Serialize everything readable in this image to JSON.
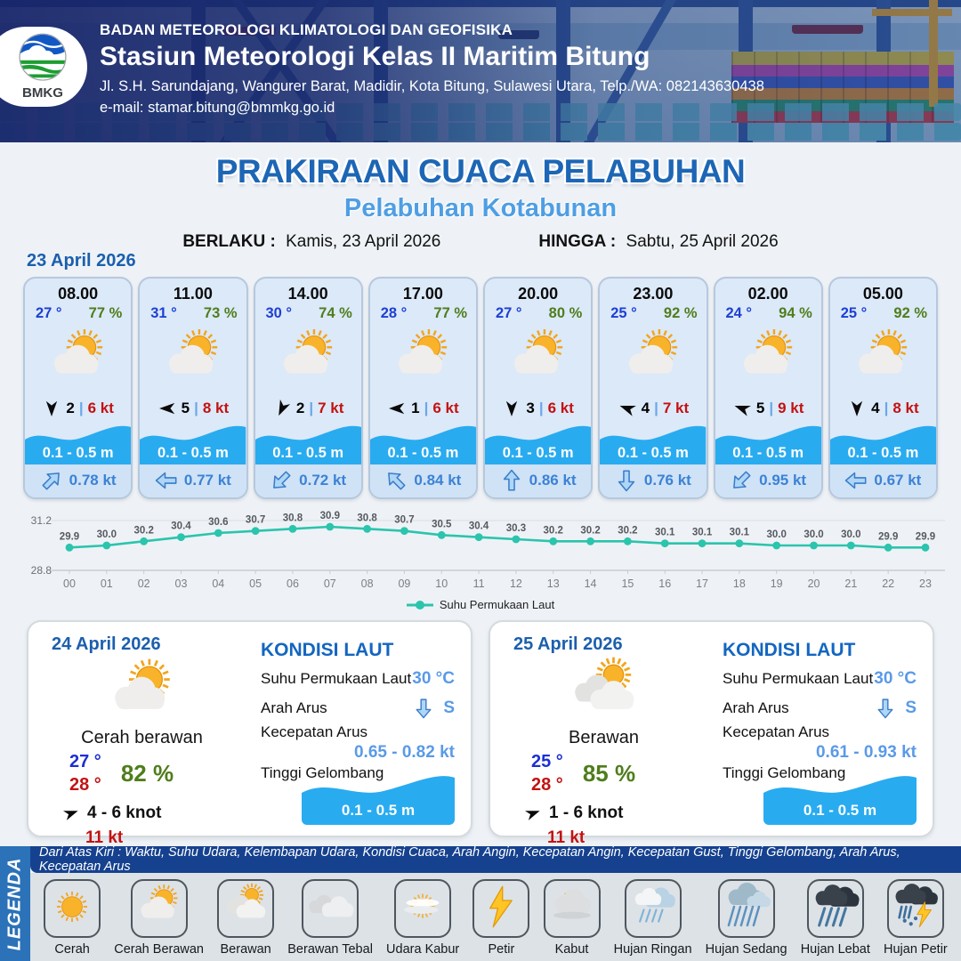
{
  "header": {
    "agency": "BADAN METEOROLOGI KLIMATOLOGI DAN GEOFISIKA",
    "station": "Stasiun Meteorologi Kelas II Maritim Bitung",
    "address": "Jl. S.H. Sarundajang, Wangurer Barat, Madidir, Kota Bitung, Sulawesi Utara, Telp./WA: 082143630438",
    "email": "e-mail: stamar.bitung@bmmkg.go.id",
    "logo_text": "BMKG"
  },
  "title": {
    "main": "PRAKIRAAN CUACA PELABUHAN",
    "sub": "Pelabuhan Kotabunan"
  },
  "validity": {
    "berlaku_label": "BERLAKU :",
    "berlaku_value": "Kamis, 23 April 2026",
    "hingga_label": "HINGGA :",
    "hingga_value": "Sabtu, 25 April 2026"
  },
  "hourly": {
    "date": "23 April 2026",
    "separator": "|",
    "cards": [
      {
        "time": "08.00",
        "temp": "27 °",
        "humidity": "77 %",
        "weather": "cerah-berawan",
        "wind_deg": 90,
        "wind": "2",
        "gust": "6 kt",
        "wave": "0.1 - 0.5 m",
        "cur_deg": -45,
        "current": "0.78 kt"
      },
      {
        "time": "11.00",
        "temp": "31 °",
        "humidity": "73 %",
        "weather": "cerah-berawan",
        "wind_deg": 180,
        "wind": "5",
        "gust": "8 kt",
        "wave": "0.1 - 0.5 m",
        "cur_deg": 180,
        "current": "0.77 kt"
      },
      {
        "time": "14.00",
        "temp": "30 °",
        "humidity": "74 %",
        "weather": "cerah-berawan",
        "wind_deg": 115,
        "wind": "2",
        "gust": "7 kt",
        "wave": "0.1 - 0.5 m",
        "cur_deg": 135,
        "current": "0.72 kt"
      },
      {
        "time": "17.00",
        "temp": "28 °",
        "humidity": "77 %",
        "weather": "cerah-berawan",
        "wind_deg": 180,
        "wind": "1",
        "gust": "6 kt",
        "wave": "0.1 - 0.5 m",
        "cur_deg": -135,
        "current": "0.84 kt"
      },
      {
        "time": "20.00",
        "temp": "27 °",
        "humidity": "80 %",
        "weather": "cerah-berawan",
        "wind_deg": 90,
        "wind": "3",
        "gust": "6 kt",
        "wave": "0.1 - 0.5 m",
        "cur_deg": -90,
        "current": "0.86 kt"
      },
      {
        "time": "23.00",
        "temp": "25 °",
        "humidity": "92 %",
        "weather": "cerah-berawan",
        "wind_deg": 200,
        "wind": "4",
        "gust": "7 kt",
        "wave": "0.1 - 0.5 m",
        "cur_deg": 90,
        "current": "0.76 kt"
      },
      {
        "time": "02.00",
        "temp": "24 °",
        "humidity": "94 %",
        "weather": "cerah-berawan",
        "wind_deg": 200,
        "wind": "5",
        "gust": "9 kt",
        "wave": "0.1 - 0.5 m",
        "cur_deg": 135,
        "current": "0.95 kt"
      },
      {
        "time": "05.00",
        "temp": "25 °",
        "humidity": "92 %",
        "weather": "cerah-berawan",
        "wind_deg": 90,
        "wind": "4",
        "gust": "8 kt",
        "wave": "0.1 - 0.5 m",
        "cur_deg": 180,
        "current": "0.67 kt"
      }
    ]
  },
  "chart_data": {
    "type": "line",
    "x": [
      "00",
      "01",
      "02",
      "03",
      "04",
      "05",
      "06",
      "07",
      "08",
      "09",
      "10",
      "11",
      "12",
      "13",
      "14",
      "15",
      "16",
      "17",
      "18",
      "19",
      "20",
      "21",
      "22",
      "23"
    ],
    "values": [
      29.9,
      30.0,
      30.2,
      30.4,
      30.6,
      30.7,
      30.8,
      30.9,
      30.8,
      30.7,
      30.5,
      30.4,
      30.3,
      30.2,
      30.2,
      30.2,
      30.1,
      30.1,
      30.1,
      30.0,
      30.0,
      30.0,
      29.9,
      29.9
    ],
    "ylim": [
      28.8,
      31.2
    ],
    "ytick_labels": [
      "31.2",
      "28.8"
    ],
    "legend": "Suhu Permukaan Laut",
    "line_color": "#2bc4ad",
    "grid": true,
    "legend_position": "bottom-center"
  },
  "daily": [
    {
      "date": "24 April 2026",
      "weather": "cerah-berawan",
      "condition": "Cerah berawan",
      "temp_min": "27 °",
      "temp_max": "28 °",
      "humidity": "82 %",
      "wind": "4  - 6 knot",
      "gust": "11 kt",
      "sea": {
        "heading": "KONDISI LAUT",
        "sst_label": "Suhu Permukaan Laut",
        "sst": "30 °C",
        "arus_label": "Arah Arus",
        "arus_dir": "S",
        "speed_label": "Kecepatan Arus",
        "speed": "0.65 - 0.82 kt",
        "wave_label": "Tinggi Gelombang",
        "wave": "0.1 - 0.5 m"
      }
    },
    {
      "date": "25 April 2026",
      "weather": "berawan",
      "condition": "Berawan",
      "temp_min": "25 °",
      "temp_max": "28 °",
      "humidity": "85 %",
      "wind": "1  - 6 knot",
      "gust": "11 kt",
      "sea": {
        "heading": "KONDISI LAUT",
        "sst_label": "Suhu Permukaan Laut",
        "sst": "30 °C",
        "arus_label": "Arah Arus",
        "arus_dir": "S",
        "speed_label": "Kecepatan Arus",
        "speed": "0.61 - 0.93 kt",
        "wave_label": "Tinggi Gelombang",
        "wave": "0.1 - 0.5 m"
      }
    }
  ],
  "legend": {
    "title": "LEGENDA",
    "description": "Dari Atas Kiri : Waktu, Suhu Udara, Kelembapan Udara, Kondisi Cuaca, Arah Angin, Kecepatan Angin, Kecepatan Gust, Tinggi Gelombang, Arah Arus, Kecepatan Arus",
    "items": [
      {
        "icon": "cerah",
        "label": "Cerah"
      },
      {
        "icon": "cerah-berawan",
        "label": "Cerah Berawan"
      },
      {
        "icon": "berawan",
        "label": "Berawan"
      },
      {
        "icon": "berawan-tebal",
        "label": "Berawan Tebal"
      },
      {
        "icon": "udara-kabur",
        "label": "Udara Kabur"
      },
      {
        "icon": "petir",
        "label": "Petir"
      },
      {
        "icon": "kabut",
        "label": "Kabut"
      },
      {
        "icon": "hujan-ringan",
        "label": "Hujan Ringan"
      },
      {
        "icon": "hujan-sedang",
        "label": "Hujan Sedang"
      },
      {
        "icon": "hujan-lebat",
        "label": "Hujan Lebat"
      },
      {
        "icon": "hujan-petir",
        "label": "Hujan Petir"
      }
    ]
  },
  "colors": {
    "accent_blue": "#1d66b5",
    "subtitle_blue": "#4f9ee3",
    "temp_blue": "#1d3fd4",
    "humidity_green": "#4f7d1c",
    "gust_red": "#c31212",
    "wave_blue": "#29abf0",
    "current_blue": "#3b82d6",
    "chart_line": "#2bc4ad"
  }
}
